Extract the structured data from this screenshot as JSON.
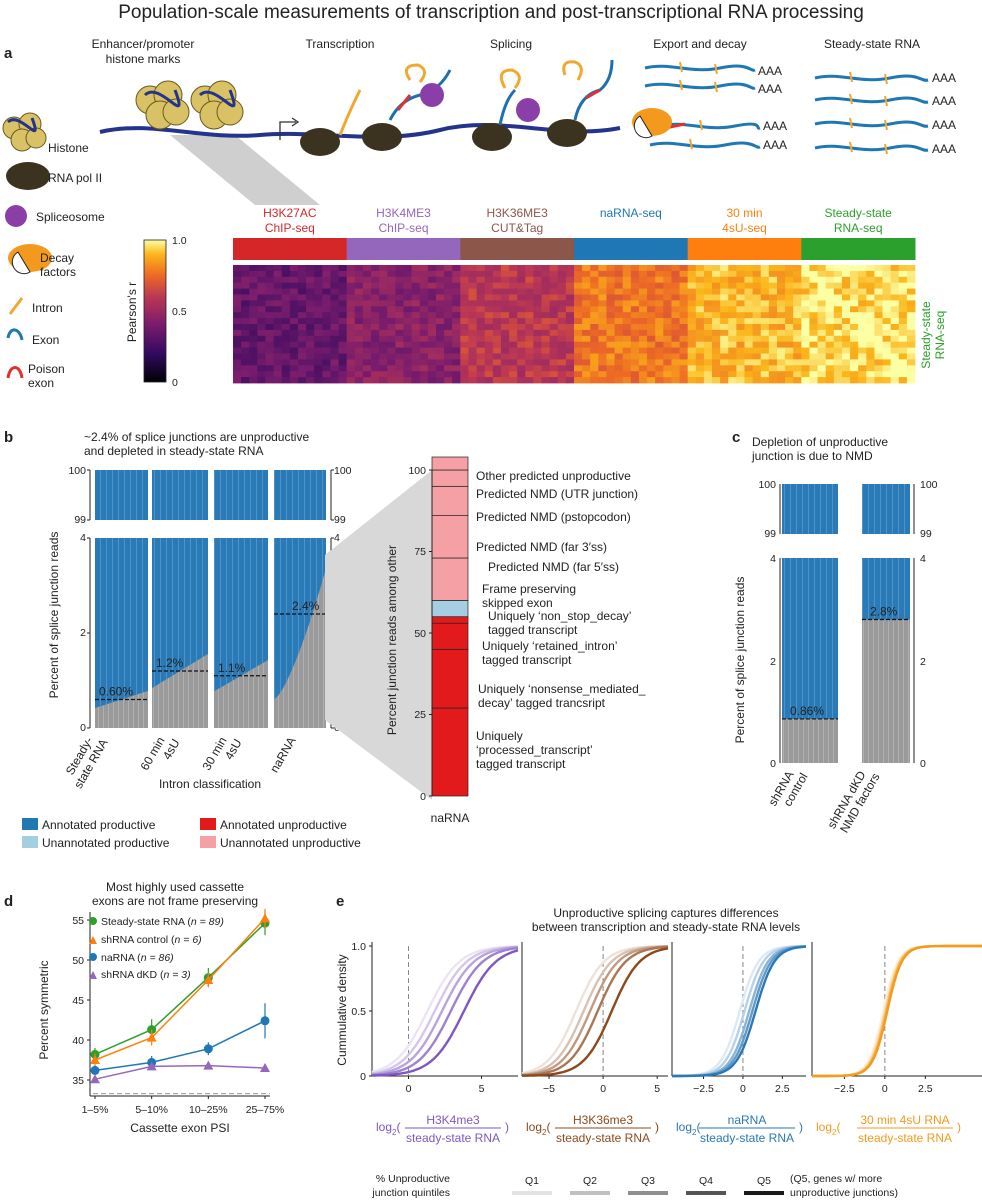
{
  "figure_title": "Population-scale measurements of transcription and post-transcriptional RNA processing",
  "panels": {
    "a": "a",
    "b": "b",
    "c": "c",
    "d": "d",
    "e": "e"
  },
  "panel_a": {
    "stage_labels": [
      "Enhancer/promoter",
      "histone marks",
      "Transcription",
      "Splicing",
      "Export and decay",
      "Steady-state RNA"
    ],
    "legend": {
      "histone": "Histone",
      "polii": "RNA pol II",
      "spliceosome": "Spliceosome",
      "decay1": "Decay",
      "decay2": "factors",
      "intron": "Intron",
      "exon": "Exon",
      "poison1": "Poison",
      "poison2": "exon"
    },
    "polyA": "AAA",
    "assays": [
      {
        "l1": "H3K27AC",
        "l2": "ChIP-seq",
        "color": "#d62728"
      },
      {
        "l1": "H3K4ME3",
        "l2": "ChIP-seq",
        "color": "#9467bd"
      },
      {
        "l1": "H3K36ME3",
        "l2": "CUT&Tag",
        "color": "#8c564b"
      },
      {
        "l1": "naRNA-seq",
        "l2": "",
        "color": "#1f77b4"
      },
      {
        "l1": "30 min",
        "l2": "4sU-seq",
        "color": "#ff7f0e"
      },
      {
        "l1": "Steady-state",
        "l2": "RNA-seq",
        "color": "#2ca02c"
      }
    ],
    "colorbar": {
      "label": "Pearson's r",
      "ticks": [
        "1.0",
        "0.5",
        "0"
      ]
    },
    "side_label_1": "Steady-state",
    "side_label_2": "RNA-seq"
  },
  "panel_b": {
    "title1": "~2.4% of splice junctions are unproductive",
    "title2": "and depleted in steady-state RNA",
    "ylabel": "Percent of splice junction reads",
    "top_ticks": [
      "100",
      "99"
    ],
    "bot_ticks": [
      "4",
      "2",
      "0"
    ],
    "xlabel": "Intron classification",
    "categories": [
      {
        "l1": "Steady-",
        "l2": "state RNA",
        "pct": "0.60%"
      },
      {
        "l1": "60 min",
        "l2": "4sU",
        "pct": "1.2%"
      },
      {
        "l1": "30 min",
        "l2": "4sU",
        "pct": "1.1%"
      },
      {
        "l1": "naRNA",
        "l2": "",
        "pct": "2.4%"
      }
    ],
    "stack_ylabel": "Percent junction reads among other",
    "stack_ticks": [
      "100",
      "75",
      "50",
      "25",
      "0"
    ],
    "stack_xlabel": "naRNA",
    "stack_labels": [
      "Other predicted unproductive",
      "Predicted NMD (UTR junction)",
      "Predicted NMD (pstopcodon)",
      "Predicted NMD (far 3′ss)",
      "Predicted NMD (far 5′ss)",
      "Frame preserving",
      "skipped exon",
      "Uniquely ‘non_stop_decay’",
      "tagged transcript",
      "Uniquely ‘retained_intron’",
      "tagged transcript",
      "Uniquely ‘nonsense_mediated_",
      "decay’ tagged trancsript",
      "Uniquely",
      "‘processed_transcript’",
      "tagged transcript"
    ],
    "legend": [
      "Annotated productive",
      "Unannotated productive",
      "Annotated unproductive",
      "Unannotated unproductive"
    ],
    "legend_colors": [
      "#1f77b4",
      "#a6cee3",
      "#e31a1c",
      "#f4a0a4"
    ]
  },
  "panel_c": {
    "title1": "Depletion of unproductive",
    "title2": "junction is due to NMD",
    "ylabel": "Percent of splice junction reads",
    "top_ticks": [
      "100",
      "99"
    ],
    "bot_ticks": [
      "4",
      "2",
      "0"
    ],
    "categories": [
      {
        "l1": "shRNA",
        "l2": "control",
        "pct": "0.86%"
      },
      {
        "l1": "shRNA dKD",
        "l2": "NMD factors",
        "pct": "2.8%"
      }
    ]
  },
  "panel_d": {
    "title1": "Most highly used cassette",
    "title2": "exons are not frame preserving",
    "ylabel": "Percent symmetric",
    "xlabel": "Cassette exon PSI",
    "yticks": [
      "55",
      "50",
      "45",
      "40",
      "35"
    ],
    "legend": [
      "Steady-state RNA (",
      "shRNA control (",
      "naRNA (",
      "shRNA dKD ("
    ],
    "legend_n": [
      "n = 89)",
      "n = 6)",
      "n = 86)",
      "n = 3)"
    ]
  },
  "panel_e": {
    "title1": "Unproductive splicing captures differences",
    "title2": "between transcription and steady-state RNA levels",
    "ylabel": "Cummulative density",
    "yticks": [
      "1.0",
      "0.5",
      "0"
    ],
    "log2": "log",
    "sub2": "2",
    "paren_open": "(",
    "paren_close": ")",
    "ratios": [
      {
        "num": "H3K4me3",
        "den": "steady-state RNA",
        "color": "#7e57c2"
      },
      {
        "num": "H3K36me3",
        "den": "steady-state RNA",
        "color": "#8c4a1c"
      },
      {
        "num": "naRNA",
        "den": "steady-state RNA",
        "color": "#2a78b5"
      },
      {
        "num": "30 min 4sU RNA",
        "den": "steady-state RNA",
        "color": "#f29b1d"
      }
    ],
    "xticks": [
      [
        "0",
        "5"
      ],
      [
        "−5",
        "0",
        "5"
      ],
      [
        "−2.5",
        "0",
        "2.5"
      ],
      [
        "−2.5",
        "0",
        "2.5"
      ]
    ],
    "quintile_title1": "% Unproductive",
    "quintile_title2": "junction quintiles",
    "quintiles": [
      "Q1",
      "Q2",
      "Q3",
      "Q4",
      "Q5"
    ],
    "q5_note1": "(Q5, genes w/ more",
    "q5_note2": "unproductive junctions)"
  },
  "chart_data": [
    {
      "type": "bar",
      "title": "~2.4% of splice junctions are unproductive and depleted in steady-state RNA",
      "xlabel": "Intron classification",
      "ylabel": "Percent of splice junction reads",
      "categories": [
        "Steady-state RNA",
        "60 min 4sU",
        "30 min 4sU",
        "naRNA"
      ],
      "series": [
        {
          "name": "Unproductive",
          "values": [
            0.6,
            1.2,
            1.1,
            2.4
          ]
        }
      ],
      "ylim": [
        0,
        4
      ]
    },
    {
      "type": "bar",
      "xlabel": "naRNA",
      "ylabel": "Percent junction reads among other",
      "ylim": [
        0,
        100
      ],
      "categories": [
        "Uniquely ‘processed_transcript’ tagged transcript",
        "Uniquely ‘nonsense_mediated_decay’ tagged trancsript",
        "Uniquely ‘retained_intron’ tagged transcript",
        "Uniquely ‘non_stop_decay’ tagged transcript",
        "Frame preserving skipped exon",
        "Predicted NMD (far 5′ss)",
        "Predicted NMD (far 3′ss)",
        "Predicted NMD (pstopcodon)",
        "Predicted NMD (UTR junction)",
        "Other predicted unproductive"
      ],
      "values": [
        27,
        18,
        8,
        2,
        5,
        13,
        13,
        9,
        5,
        4
      ]
    },
    {
      "type": "bar",
      "title": "Depletion of unproductive junction is due to NMD",
      "ylabel": "Percent of splice junction reads",
      "categories": [
        "shRNA control",
        "shRNA dKD NMD factors"
      ],
      "series": [
        {
          "name": "Unproductive",
          "values": [
            0.86,
            2.8
          ]
        }
      ],
      "ylim": [
        0,
        4
      ]
    },
    {
      "type": "line",
      "title": "Most highly used cassette exons are not frame preserving",
      "xlabel": "Cassette exon PSI",
      "ylabel": "Percent symmetric",
      "categories": [
        "1–5%",
        "5–10%",
        "10–25%",
        "25–75%"
      ],
      "ylim": [
        33,
        56
      ],
      "series": [
        {
          "name": "Steady-state RNA (n = 89)",
          "color": "#2ca02c",
          "values": [
            38.2,
            41.3,
            47.8,
            54.6
          ],
          "err": [
            0.8,
            1.3,
            1.2,
            1.5
          ]
        },
        {
          "name": "shRNA control (n = 6)",
          "color": "#ff7f0e",
          "values": [
            37.5,
            40.3,
            47.5,
            55.2
          ],
          "err": [
            0.8,
            1.0,
            0.9,
            1.2
          ]
        },
        {
          "name": "naRNA (n = 86)",
          "color": "#1f77b4",
          "values": [
            36.2,
            37.2,
            38.9,
            42.4
          ],
          "err": [
            0.6,
            0.8,
            0.8,
            2.2
          ]
        },
        {
          "name": "shRNA dKD (n = 3)",
          "color": "#9467bd",
          "values": [
            35.1,
            36.7,
            36.8,
            36.5
          ],
          "err": [
            0.3,
            0.3,
            0.2,
            0.2
          ]
        }
      ]
    },
    {
      "type": "line",
      "title": "Unproductive splicing captures differences between transcription and steady-state RNA levels",
      "ylabel": "Cummulative density",
      "ylim": [
        0,
        1
      ],
      "series": [
        "Q1",
        "Q2",
        "Q3",
        "Q4",
        "Q5"
      ],
      "panels": [
        {
          "xlabel": "log2(H3K4me3 / steady-state RNA)",
          "xlim": [
            -2.5,
            7.5
          ],
          "medians": [
            1.3,
            1.8,
            2.3,
            2.9,
            3.8
          ],
          "scale": 1.1
        },
        {
          "xlabel": "log2(H3K36me3 / steady-state RNA)",
          "xlim": [
            -7.5,
            6
          ],
          "medians": [
            -2.5,
            -1.8,
            -1.2,
            -0.5,
            0.8
          ],
          "scale": 1.3
        },
        {
          "xlabel": "log2(naRNA / steady-state RNA)",
          "xlim": [
            -4.5,
            4
          ],
          "medians": [
            -0.2,
            0.1,
            0.4,
            0.6,
            0.8
          ],
          "scale": 0.6
        },
        {
          "xlabel": "log2(30 min 4sU RNA / steady-state RNA)",
          "xlim": [
            -4.5,
            6
          ],
          "medians": [
            -0.1,
            0.0,
            0.05,
            0.1,
            0.15
          ],
          "scale": 0.45
        }
      ]
    }
  ]
}
